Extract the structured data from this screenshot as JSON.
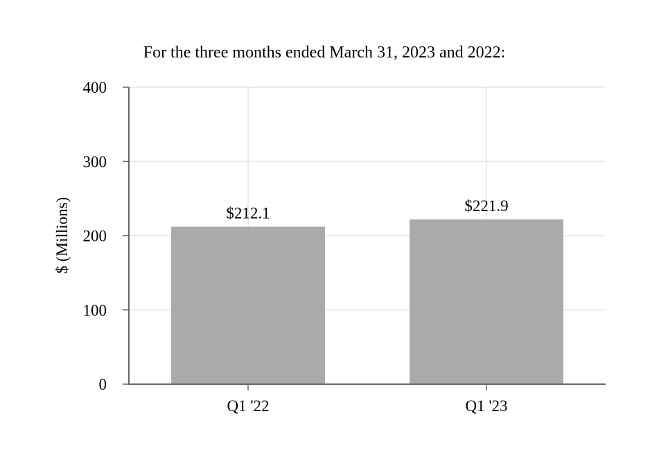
{
  "chart_data": {
    "type": "bar",
    "title": "For the three months ended March 31, 2023 and 2022:",
    "ylabel": "$ (Millions)",
    "xlabel": "",
    "categories": [
      "Q1 '22",
      "Q1 '23"
    ],
    "values": [
      212.1,
      221.9
    ],
    "data_labels": [
      "$212.1",
      "$221.9"
    ],
    "ylim": [
      0,
      400
    ],
    "yticks": [
      0,
      100,
      200,
      300,
      400
    ],
    "ytick_labels": [
      "0",
      "100",
      "200",
      "300",
      "400"
    ],
    "grid": true,
    "bar_color": "#aaaaaa",
    "legend": "none"
  }
}
